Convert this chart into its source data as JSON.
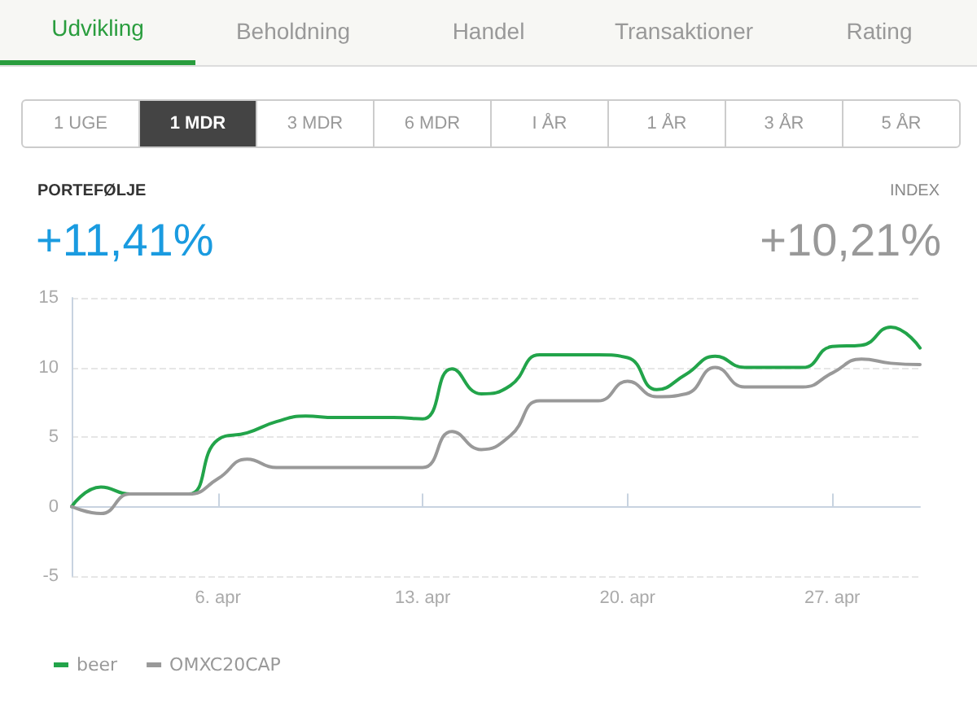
{
  "chart_data": {
    "type": "line",
    "annotations": [
      "Udvikling",
      "Beholdning",
      "Handel",
      "Transaktioner",
      "Rating",
      "1 UGE",
      "1 MDR",
      "3 MDR",
      "6 MDR",
      "I ÅR",
      "1 ÅR",
      "3 ÅR",
      "5 ÅR",
      "PORTEFØLJE",
      "+11,41%",
      "INDEX",
      "+10,21%"
    ],
    "x": [
      "--04-01",
      "--04-02",
      "--04-03",
      "--04-04",
      "--04-05",
      "--04-06",
      "--04-07",
      "--04-08",
      "--04-09",
      "--04-10",
      "--04-11",
      "--04-12",
      "--04-13",
      "--04-14",
      "--04-15",
      "--04-16",
      "--04-17",
      "--04-18",
      "--04-19",
      "--04-20",
      "--04-21",
      "--04-22",
      "--04-23",
      "--04-24",
      "--04-25",
      "--04-26",
      "--04-27",
      "--04-28",
      "--04-29",
      "--04-30"
    ],
    "series": [
      {
        "name": "beer",
        "color": "#22a44a",
        "values": [
          0,
          1.4,
          0.9,
          0.9,
          0.9,
          4.8,
          5.3,
          6.1,
          6.5,
          6.4,
          6.4,
          6.4,
          6.3,
          9.9,
          8.1,
          8.7,
          10.9,
          10.9,
          10.9,
          10.7,
          8.4,
          9.5,
          10.8,
          10.0,
          10.0,
          10.0,
          11.5,
          11.6,
          12.9,
          11.4
        ]
      },
      {
        "name": "OMXC20CAP",
        "color": "#999999",
        "values": [
          0,
          -0.5,
          0.9,
          0.9,
          0.9,
          2.0,
          3.4,
          2.8,
          2.8,
          2.8,
          2.8,
          2.8,
          2.8,
          5.4,
          4.1,
          5.1,
          7.6,
          7.6,
          7.6,
          9.0,
          7.9,
          8.1,
          10.0,
          8.6,
          8.6,
          8.6,
          9.6,
          10.6,
          10.3,
          10.2
        ]
      }
    ],
    "xlim": [
      "--04-01",
      "--04-30"
    ],
    "xticks": [
      {
        "value": "--04-06",
        "label": "6. apr"
      },
      {
        "value": "--04-13",
        "label": "13. apr"
      },
      {
        "value": "--04-20",
        "label": "20. apr"
      },
      {
        "value": "--04-27",
        "label": "27. apr"
      }
    ],
    "ylim": [
      -5,
      15
    ],
    "yticks": [
      -5,
      0,
      5,
      10,
      15
    ],
    "grid": "y",
    "legend": "bottom left",
    "marker": "none",
    "line_style": "solid"
  }
}
